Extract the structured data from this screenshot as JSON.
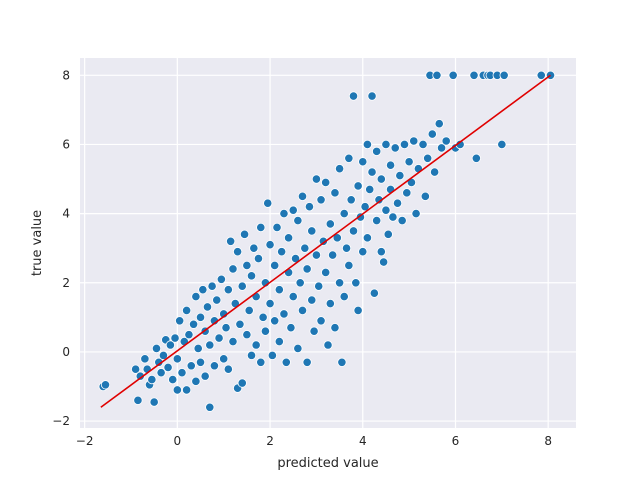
{
  "chart_data": {
    "type": "scatter",
    "title": "",
    "xlabel": "predicted value",
    "ylabel": "true value",
    "xlim": [
      -2.1,
      8.6
    ],
    "ylim": [
      -2.2,
      8.5
    ],
    "xticks": [
      -2,
      0,
      2,
      4,
      6,
      8
    ],
    "yticks": [
      -2,
      0,
      2,
      4,
      6,
      8
    ],
    "grid": true,
    "colors": {
      "background": "#eaeaf2",
      "grid": "#ffffff",
      "point_fill": "#1f77b4",
      "point_edge": "#ffffff",
      "line": "#e00000"
    },
    "points": [
      [
        -1.6,
        -1.0
      ],
      [
        -1.55,
        -0.95
      ],
      [
        -0.9,
        -0.5
      ],
      [
        -0.85,
        -1.4
      ],
      [
        -0.8,
        -0.7
      ],
      [
        -0.7,
        -0.2
      ],
      [
        -0.65,
        -0.5
      ],
      [
        -0.6,
        -0.95
      ],
      [
        -0.55,
        -0.8
      ],
      [
        -0.5,
        -1.45
      ],
      [
        -0.45,
        0.1
      ],
      [
        -0.4,
        -0.3
      ],
      [
        -0.35,
        -0.6
      ],
      [
        -0.3,
        -0.1
      ],
      [
        -0.25,
        0.35
      ],
      [
        -0.2,
        -0.45
      ],
      [
        -0.15,
        0.2
      ],
      [
        -0.1,
        -0.8
      ],
      [
        -0.05,
        0.4
      ],
      [
        0.0,
        -0.2
      ],
      [
        0.0,
        -1.1
      ],
      [
        0.05,
        0.9
      ],
      [
        0.1,
        -0.6
      ],
      [
        0.15,
        0.3
      ],
      [
        0.2,
        1.2
      ],
      [
        0.2,
        -1.1
      ],
      [
        0.25,
        0.5
      ],
      [
        0.3,
        -0.4
      ],
      [
        0.35,
        0.8
      ],
      [
        0.4,
        1.6
      ],
      [
        0.4,
        -0.85
      ],
      [
        0.45,
        0.1
      ],
      [
        0.5,
        1.0
      ],
      [
        0.5,
        -0.3
      ],
      [
        0.55,
        1.8
      ],
      [
        0.6,
        0.6
      ],
      [
        0.6,
        -0.7
      ],
      [
        0.65,
        1.3
      ],
      [
        0.7,
        -1.6
      ],
      [
        0.7,
        0.2
      ],
      [
        0.75,
        1.9
      ],
      [
        0.8,
        0.9
      ],
      [
        0.8,
        -0.4
      ],
      [
        0.85,
        1.5
      ],
      [
        0.9,
        0.4
      ],
      [
        0.95,
        2.1
      ],
      [
        1.0,
        1.1
      ],
      [
        1.0,
        -0.2
      ],
      [
        1.05,
        0.7
      ],
      [
        1.1,
        1.8
      ],
      [
        1.1,
        -0.5
      ],
      [
        1.15,
        3.2
      ],
      [
        1.2,
        2.4
      ],
      [
        1.2,
        0.3
      ],
      [
        1.25,
        1.4
      ],
      [
        1.3,
        -1.05
      ],
      [
        1.3,
        2.9
      ],
      [
        1.35,
        0.8
      ],
      [
        1.4,
        1.9
      ],
      [
        1.4,
        -0.9
      ],
      [
        1.45,
        3.4
      ],
      [
        1.5,
        2.5
      ],
      [
        1.5,
        0.5
      ],
      [
        1.55,
        1.2
      ],
      [
        1.6,
        2.2
      ],
      [
        1.6,
        -0.1
      ],
      [
        1.65,
        3.0
      ],
      [
        1.7,
        1.6
      ],
      [
        1.7,
        0.2
      ],
      [
        1.75,
        2.7
      ],
      [
        1.8,
        -0.3
      ],
      [
        1.8,
        3.6
      ],
      [
        1.85,
        1.0
      ],
      [
        1.9,
        2.0
      ],
      [
        1.9,
        0.6
      ],
      [
        1.95,
        4.3
      ],
      [
        2.0,
        3.1
      ],
      [
        2.0,
        1.4
      ],
      [
        2.05,
        -0.1
      ],
      [
        2.1,
        2.5
      ],
      [
        2.1,
        0.9
      ],
      [
        2.15,
        3.6
      ],
      [
        2.2,
        1.8
      ],
      [
        2.2,
        0.3
      ],
      [
        2.25,
        2.9
      ],
      [
        2.3,
        4.0
      ],
      [
        2.3,
        1.1
      ],
      [
        2.35,
        -0.3
      ],
      [
        2.4,
        2.3
      ],
      [
        2.4,
        3.3
      ],
      [
        2.45,
        0.7
      ],
      [
        2.5,
        4.1
      ],
      [
        2.5,
        1.6
      ],
      [
        2.55,
        2.7
      ],
      [
        2.6,
        0.1
      ],
      [
        2.6,
        3.8
      ],
      [
        2.65,
        2.0
      ],
      [
        2.7,
        4.5
      ],
      [
        2.7,
        1.2
      ],
      [
        2.75,
        3.0
      ],
      [
        2.8,
        -0.3
      ],
      [
        2.8,
        2.4
      ],
      [
        2.85,
        4.2
      ],
      [
        2.9,
        1.5
      ],
      [
        2.9,
        3.5
      ],
      [
        2.95,
        0.6
      ],
      [
        3.0,
        5.0
      ],
      [
        3.0,
        2.8
      ],
      [
        3.05,
        1.9
      ],
      [
        3.1,
        4.4
      ],
      [
        3.1,
        0.9
      ],
      [
        3.15,
        3.2
      ],
      [
        3.2,
        2.3
      ],
      [
        3.2,
        4.9
      ],
      [
        3.25,
        0.2
      ],
      [
        3.3,
        3.7
      ],
      [
        3.3,
        1.4
      ],
      [
        3.35,
        2.8
      ],
      [
        3.4,
        4.6
      ],
      [
        3.4,
        0.7
      ],
      [
        3.45,
        3.3
      ],
      [
        3.5,
        5.3
      ],
      [
        3.5,
        2.0
      ],
      [
        3.55,
        -0.3
      ],
      [
        3.6,
        4.0
      ],
      [
        3.6,
        1.6
      ],
      [
        3.65,
        3.0
      ],
      [
        3.7,
        5.6
      ],
      [
        3.7,
        2.5
      ],
      [
        3.75,
        4.4
      ],
      [
        3.8,
        7.4
      ],
      [
        3.8,
        3.5
      ],
      [
        3.85,
        2.0
      ],
      [
        3.9,
        4.8
      ],
      [
        3.9,
        1.2
      ],
      [
        3.95,
        3.9
      ],
      [
        4.0,
        5.5
      ],
      [
        4.0,
        2.9
      ],
      [
        4.05,
        4.2
      ],
      [
        4.1,
        6.0
      ],
      [
        4.1,
        3.3
      ],
      [
        4.15,
        4.7
      ],
      [
        4.2,
        5.2
      ],
      [
        4.2,
        7.4
      ],
      [
        4.25,
        1.7
      ],
      [
        4.3,
        3.8
      ],
      [
        4.3,
        5.8
      ],
      [
        4.35,
        4.4
      ],
      [
        4.4,
        2.9
      ],
      [
        4.4,
        5.0
      ],
      [
        4.45,
        2.6
      ],
      [
        4.5,
        4.1
      ],
      [
        4.5,
        6.0
      ],
      [
        4.55,
        3.4
      ],
      [
        4.6,
        5.4
      ],
      [
        4.6,
        4.7
      ],
      [
        4.65,
        3.9
      ],
      [
        4.7,
        5.9
      ],
      [
        4.75,
        4.3
      ],
      [
        4.8,
        5.1
      ],
      [
        4.85,
        3.8
      ],
      [
        4.9,
        6.0
      ],
      [
        4.95,
        4.6
      ],
      [
        5.0,
        5.5
      ],
      [
        5.05,
        4.9
      ],
      [
        5.1,
        6.1
      ],
      [
        5.15,
        4.0
      ],
      [
        5.2,
        5.3
      ],
      [
        5.3,
        6.0
      ],
      [
        5.35,
        4.5
      ],
      [
        5.4,
        5.6
      ],
      [
        5.45,
        8.0
      ],
      [
        5.5,
        6.3
      ],
      [
        5.55,
        5.2
      ],
      [
        5.6,
        8.0
      ],
      [
        5.65,
        6.6
      ],
      [
        5.7,
        5.9
      ],
      [
        5.8,
        6.1
      ],
      [
        5.95,
        8.0
      ],
      [
        6.0,
        5.9
      ],
      [
        6.1,
        6.0
      ],
      [
        6.4,
        8.0
      ],
      [
        6.45,
        5.6
      ],
      [
        6.6,
        8.0
      ],
      [
        6.7,
        8.0
      ],
      [
        6.75,
        8.0
      ],
      [
        6.9,
        8.0
      ],
      [
        7.0,
        6.0
      ],
      [
        7.05,
        8.0
      ],
      [
        7.85,
        8.0
      ],
      [
        8.05,
        8.0
      ]
    ],
    "fit_line": {
      "x": [
        -1.65,
        8.05
      ],
      "y": [
        -1.6,
        8.0
      ]
    }
  }
}
